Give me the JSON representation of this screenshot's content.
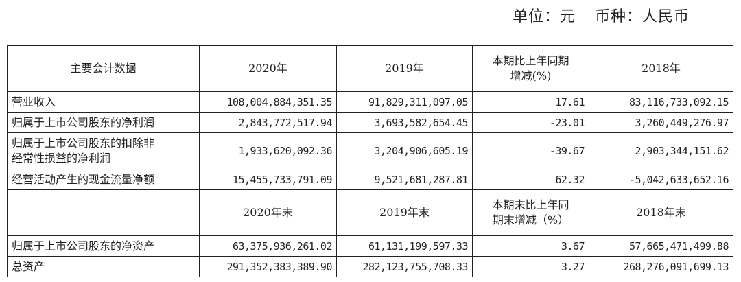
{
  "unit_line": {
    "unit": "单位：元",
    "currency": "币种：人民币"
  },
  "header1": [
    "主要会计数据",
    "2020年",
    "2019年",
    "本期比上年同期\n增减(%)",
    "2018年"
  ],
  "rows1": [
    [
      "营业收入",
      "108,004,884,351.35",
      "91,829,311,097.05",
      "17.61",
      "83,116,733,092.15"
    ],
    [
      "归属于上市公司股东的净利润",
      "2,843,772,517.94",
      "3,693,582,654.45",
      "-23.01",
      "3,260,449,276.97"
    ],
    [
      "归属于上市公司股东的扣除非\n经常性损益的净利润",
      "1,933,620,092.36",
      "3,204,906,605.19",
      "-39.67",
      "2,903,344,151.62"
    ],
    [
      "经营活动产生的现金流量净额",
      "15,455,733,791.09",
      "9,521,681,287.81",
      "62.32",
      "-5,042,633,652.16"
    ]
  ],
  "header2": [
    "",
    "2020年末",
    "2019年末",
    "本期末比上年同\n期末增减（%）",
    "2018年末"
  ],
  "rows2": [
    [
      "归属于上市公司股东的净资产",
      "63,375,936,261.02",
      "61,131,199,597.33",
      "3.67",
      "57,665,471,499.88"
    ],
    [
      "总资产",
      "291,352,383,389.90",
      "282,123,755,708.33",
      "3.27",
      "268,276,091,699.13"
    ]
  ]
}
